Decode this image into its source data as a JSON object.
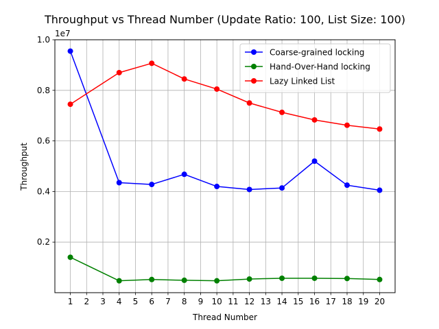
{
  "chart_data": {
    "type": "line",
    "title": "Throughput vs Thread Number (Update Ratio: 100, List Size: 100)",
    "xlabel": "Thread Number",
    "ylabel": "Throughput",
    "y_offset_label": "1e7",
    "x_ticks": [
      1,
      2,
      3,
      4,
      5,
      6,
      7,
      8,
      9,
      10,
      11,
      12,
      13,
      14,
      15,
      16,
      17,
      18,
      19,
      20
    ],
    "y_ticks": [
      0.2,
      0.4,
      0.6,
      0.8,
      1.0
    ],
    "y_tick_labels": [
      "0.2",
      "0.4",
      "0.6",
      "0.8",
      "1.0"
    ],
    "xlim": [
      0.05,
      20.95
    ],
    "ylim": [
      0.0,
      1.0
    ],
    "grid": true,
    "legend_position": "upper right",
    "x": [
      1,
      4,
      6,
      8,
      10,
      12,
      14,
      16,
      18,
      20
    ],
    "series": [
      {
        "name": "Coarse-grained locking",
        "color": "#0000ff",
        "marker": "circle",
        "values": [
          0.955,
          0.435,
          0.428,
          0.468,
          0.42,
          0.408,
          0.414,
          0.52,
          0.425,
          0.405
        ]
      },
      {
        "name": "Hand-Over-Hand locking",
        "color": "#008000",
        "marker": "circle",
        "values": [
          0.14,
          0.047,
          0.052,
          0.049,
          0.047,
          0.054,
          0.057,
          0.057,
          0.056,
          0.052
        ]
      },
      {
        "name": "Lazy Linked List",
        "color": "#ff0000",
        "marker": "circle",
        "values": [
          0.745,
          0.87,
          0.907,
          0.845,
          0.805,
          0.75,
          0.713,
          0.683,
          0.662,
          0.647
        ]
      }
    ]
  }
}
